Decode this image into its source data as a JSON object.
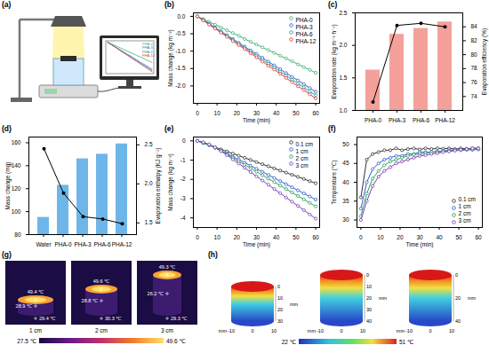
{
  "chart_data": [
    {
      "title": "(b)",
      "type": "line",
      "x": [
        0,
        3,
        6,
        9,
        12,
        15,
        18,
        21,
        24,
        27,
        30,
        33,
        36,
        39,
        42,
        45,
        48,
        51,
        54,
        57,
        60
      ],
      "xlim": [
        -2,
        62
      ],
      "xticks": [
        0,
        10,
        20,
        30,
        40,
        50,
        60
      ],
      "xlabel": "Time (min)",
      "ylim": [
        -2.5,
        0.1
      ],
      "yticks": [
        {
          "value": 0,
          "label": "0.0"
        },
        -0.5,
        {
          "value": -1,
          "label": "-1.0"
        },
        -1.5,
        {
          "value": -2,
          "label": "-2.0"
        }
      ],
      "ylabel": "Mass change (kg m⁻²)",
      "legend": "top-right",
      "series": [
        {
          "name": "PHA-0",
          "color": "#3cb371",
          "marker": "circle",
          "values": [
            0,
            -0.08,
            -0.16,
            -0.24,
            -0.32,
            -0.4,
            -0.48,
            -0.56,
            -0.65,
            -0.73,
            -0.81,
            -0.89,
            -0.97,
            -1.05,
            -1.13,
            -1.21,
            -1.29,
            -1.38,
            -1.46,
            -1.54,
            -1.62
          ]
        },
        {
          "name": "PHA-3",
          "color": "#3a5fcd",
          "marker": "circle",
          "values": [
            0,
            -0.1,
            -0.21,
            -0.32,
            -0.43,
            -0.54,
            -0.65,
            -0.76,
            -0.87,
            -0.98,
            -1.08,
            -1.19,
            -1.3,
            -1.41,
            -1.52,
            -1.63,
            -1.74,
            -1.84,
            -1.95,
            -2.06,
            -2.17
          ]
        },
        {
          "name": "PHA-6",
          "color": "#2aa198",
          "marker": "circle",
          "values": [
            0,
            -0.11,
            -0.23,
            -0.34,
            -0.45,
            -0.57,
            -0.68,
            -0.79,
            -0.91,
            -1.02,
            -1.13,
            -1.25,
            -1.36,
            -1.47,
            -1.59,
            -1.7,
            -1.82,
            -1.93,
            -2.04,
            -2.16,
            -2.27
          ]
        },
        {
          "name": "PHA-12",
          "color": "#e0403a",
          "marker": "circle",
          "values": [
            0,
            -0.12,
            -0.24,
            -0.35,
            -0.47,
            -0.59,
            -0.71,
            -0.83,
            -0.94,
            -1.06,
            -1.18,
            -1.3,
            -1.42,
            -1.53,
            -1.65,
            -1.77,
            -1.89,
            -2.01,
            -2.12,
            -2.24,
            -2.36
          ]
        }
      ]
    },
    {
      "title": "(c)",
      "type": "bar",
      "categories": [
        "PHA-0",
        "PHA-3",
        "PHA-6",
        "PHA-12"
      ],
      "ylim": [
        1.0,
        2.5
      ],
      "yticks": [
        {
          "value": 1,
          "label": "1.0"
        },
        1.5,
        {
          "value": 2,
          "label": "2.0"
        },
        2.5
      ],
      "ylabel": "Evaporation rate (kg m⁻² h⁻¹)",
      "y2lim": [
        72,
        86
      ],
      "y2ticks": [
        74,
        76,
        78,
        80,
        82,
        84
      ],
      "y2label": "Evaporation efficiency (%)",
      "series": [
        {
          "type": "bar",
          "color": "#f4a19b",
          "values": [
            1.62,
            2.17,
            2.26,
            2.36
          ]
        },
        {
          "type": "line",
          "axis": "y2",
          "color": "#000000",
          "marker": "circle",
          "values": [
            73.2,
            84.2,
            84.5,
            84.0
          ]
        }
      ]
    },
    {
      "title": "(d)",
      "type": "bar",
      "categories": [
        "Water",
        "PHA-0",
        "PHA-3",
        "PHA-6",
        "PHA-12"
      ],
      "ylim": [
        80,
        165
      ],
      "yticks": [
        80,
        100,
        120,
        140,
        160
      ],
      "ylabel": "Mass change (mg)",
      "y2lim": [
        1.35,
        2.6
      ],
      "y2ticks": [
        1.5,
        {
          "value": 2,
          "label": "2.0"
        },
        2.5
      ],
      "y2label": "Evaporation enthalpy (KJ g⁻¹)",
      "series": [
        {
          "type": "bar",
          "color": "#6eb6ea",
          "values": [
            95,
            123,
            146,
            150,
            159
          ]
        },
        {
          "type": "line",
          "axis": "y2",
          "color": "#000000",
          "marker": "circle",
          "values": [
            2.45,
            1.88,
            1.58,
            1.55,
            1.49
          ]
        }
      ]
    },
    {
      "title": "(e)",
      "type": "line",
      "x": [
        0,
        3,
        6,
        9,
        12,
        15,
        18,
        21,
        24,
        27,
        30,
        33,
        36,
        39,
        42,
        45,
        48,
        51,
        54,
        57,
        60
      ],
      "xlim": [
        -2,
        62
      ],
      "xticks": [
        0,
        10,
        20,
        30,
        40,
        50,
        60
      ],
      "xlabel": "Time (min)",
      "ylim": [
        -4.5,
        0.2
      ],
      "yticks": [
        0,
        -1,
        -2,
        -3,
        -4
      ],
      "ylabel": "Mass change (kg m⁻²)",
      "legend": "top-right",
      "series": [
        {
          "name": "0.1 cm",
          "color": "#333333",
          "marker": "circle",
          "values": [
            0,
            -0.11,
            -0.22,
            -0.33,
            -0.44,
            -0.55,
            -0.66,
            -0.77,
            -0.88,
            -0.99,
            -1.1,
            -1.21,
            -1.32,
            -1.43,
            -1.54,
            -1.65,
            -1.76,
            -1.87,
            -1.98,
            -2.09,
            -2.2
          ]
        },
        {
          "name": "1 cm",
          "color": "#2f5fd0",
          "marker": "circle",
          "values": [
            0,
            -0.1,
            -0.22,
            -0.36,
            -0.51,
            -0.66,
            -0.81,
            -0.97,
            -1.13,
            -1.29,
            -1.45,
            -1.61,
            -1.77,
            -1.93,
            -2.09,
            -2.25,
            -2.41,
            -2.57,
            -2.73,
            -2.89,
            -3.05
          ]
        },
        {
          "name": "2 cm",
          "color": "#2e9e5a",
          "marker": "circle",
          "values": [
            0,
            -0.08,
            -0.2,
            -0.35,
            -0.52,
            -0.7,
            -0.88,
            -1.06,
            -1.24,
            -1.42,
            -1.6,
            -1.78,
            -1.96,
            -2.14,
            -2.32,
            -2.5,
            -2.68,
            -2.86,
            -3.04,
            -3.22,
            -3.4
          ]
        },
        {
          "name": "3 cm",
          "color": "#7b3fb5",
          "marker": "circle",
          "values": [
            0,
            -0.07,
            -0.18,
            -0.34,
            -0.53,
            -0.74,
            -0.96,
            -1.18,
            -1.4,
            -1.62,
            -1.84,
            -2.06,
            -2.28,
            -2.5,
            -2.72,
            -2.94,
            -3.16,
            -3.38,
            -3.6,
            -3.82,
            -4.04
          ]
        }
      ]
    },
    {
      "title": "(f)",
      "type": "line",
      "x": [
        0,
        3,
        6,
        9,
        12,
        15,
        18,
        21,
        24,
        27,
        30,
        33,
        36,
        39,
        42,
        45,
        48,
        51,
        54,
        57,
        60
      ],
      "xlim": [
        -2,
        62
      ],
      "xticks": [
        0,
        10,
        20,
        30,
        40,
        50,
        60
      ],
      "xlabel": "Time (min)",
      "ylim": [
        28,
        52
      ],
      "yticks": [
        30,
        35,
        40,
        45,
        50
      ],
      "ylabel": "Temperature (℃)",
      "legend": "bottom-right",
      "series": [
        {
          "name": "0.1 cm",
          "color": "#333333",
          "marker": "circle",
          "values": [
            36,
            46,
            47.5,
            48,
            48.5,
            48.5,
            49,
            48.5,
            48.8,
            49,
            48.7,
            49,
            48.8,
            49,
            48.9,
            49,
            48.8,
            49,
            48.9,
            49,
            49
          ]
        },
        {
          "name": "1 cm",
          "color": "#2f5fd0",
          "marker": "circle",
          "values": [
            33,
            40,
            43.5,
            45,
            46,
            46.5,
            47,
            47,
            47.5,
            47.5,
            48,
            48,
            48,
            48.2,
            48.3,
            48.5,
            48.5,
            48.5,
            48.6,
            48.6,
            48.7
          ]
        },
        {
          "name": "2 cm",
          "color": "#2e9e5a",
          "marker": "circle",
          "values": [
            31,
            37,
            41,
            43,
            44.5,
            45.5,
            46,
            46.5,
            47,
            47.3,
            47.5,
            47.7,
            48,
            48,
            48.2,
            48.3,
            48.5,
            48.6,
            48.7,
            48.8,
            49
          ]
        },
        {
          "name": "3 cm",
          "color": "#7b3fb5",
          "marker": "circle",
          "values": [
            30,
            35,
            39,
            41.5,
            43,
            44,
            45,
            45.5,
            46,
            46.5,
            47,
            47.2,
            47.5,
            47.7,
            48,
            48.2,
            48.4,
            48.6,
            48.8,
            49,
            49
          ]
        }
      ]
    }
  ],
  "panel_a": {
    "title": "(a)"
  },
  "panel_g": {
    "title": "(g)",
    "images": [
      {
        "label": "1 cm",
        "temps": [
          "49.4 ℃",
          "28.9 ℃",
          "29.4 ℃"
        ]
      },
      {
        "label": "2 cm",
        "temps": [
          "49.6 ℃",
          "28.8 ℃",
          "30.3 ℃"
        ]
      },
      {
        "label": "3 cm",
        "temps": [
          "49.3 ℃",
          "26.2 ℃",
          "29.3 ℃"
        ]
      }
    ],
    "colorbar_labels": [
      "27.5 ℃",
      "49.6 ℃"
    ]
  },
  "panel_h": {
    "title": "(h)",
    "cylinders": [
      {
        "depth_ticks": [
          0,
          10,
          20,
          30
        ]
      },
      {
        "depth_ticks": [
          0,
          10,
          20,
          30,
          40
        ]
      },
      {
        "depth_ticks": [
          0,
          20,
          40
        ]
      }
    ],
    "unit": "mm",
    "base_ticks": [
      -10,
      0,
      10
    ],
    "colorbar_labels": [
      "22 ℃",
      "51 ℃"
    ]
  }
}
